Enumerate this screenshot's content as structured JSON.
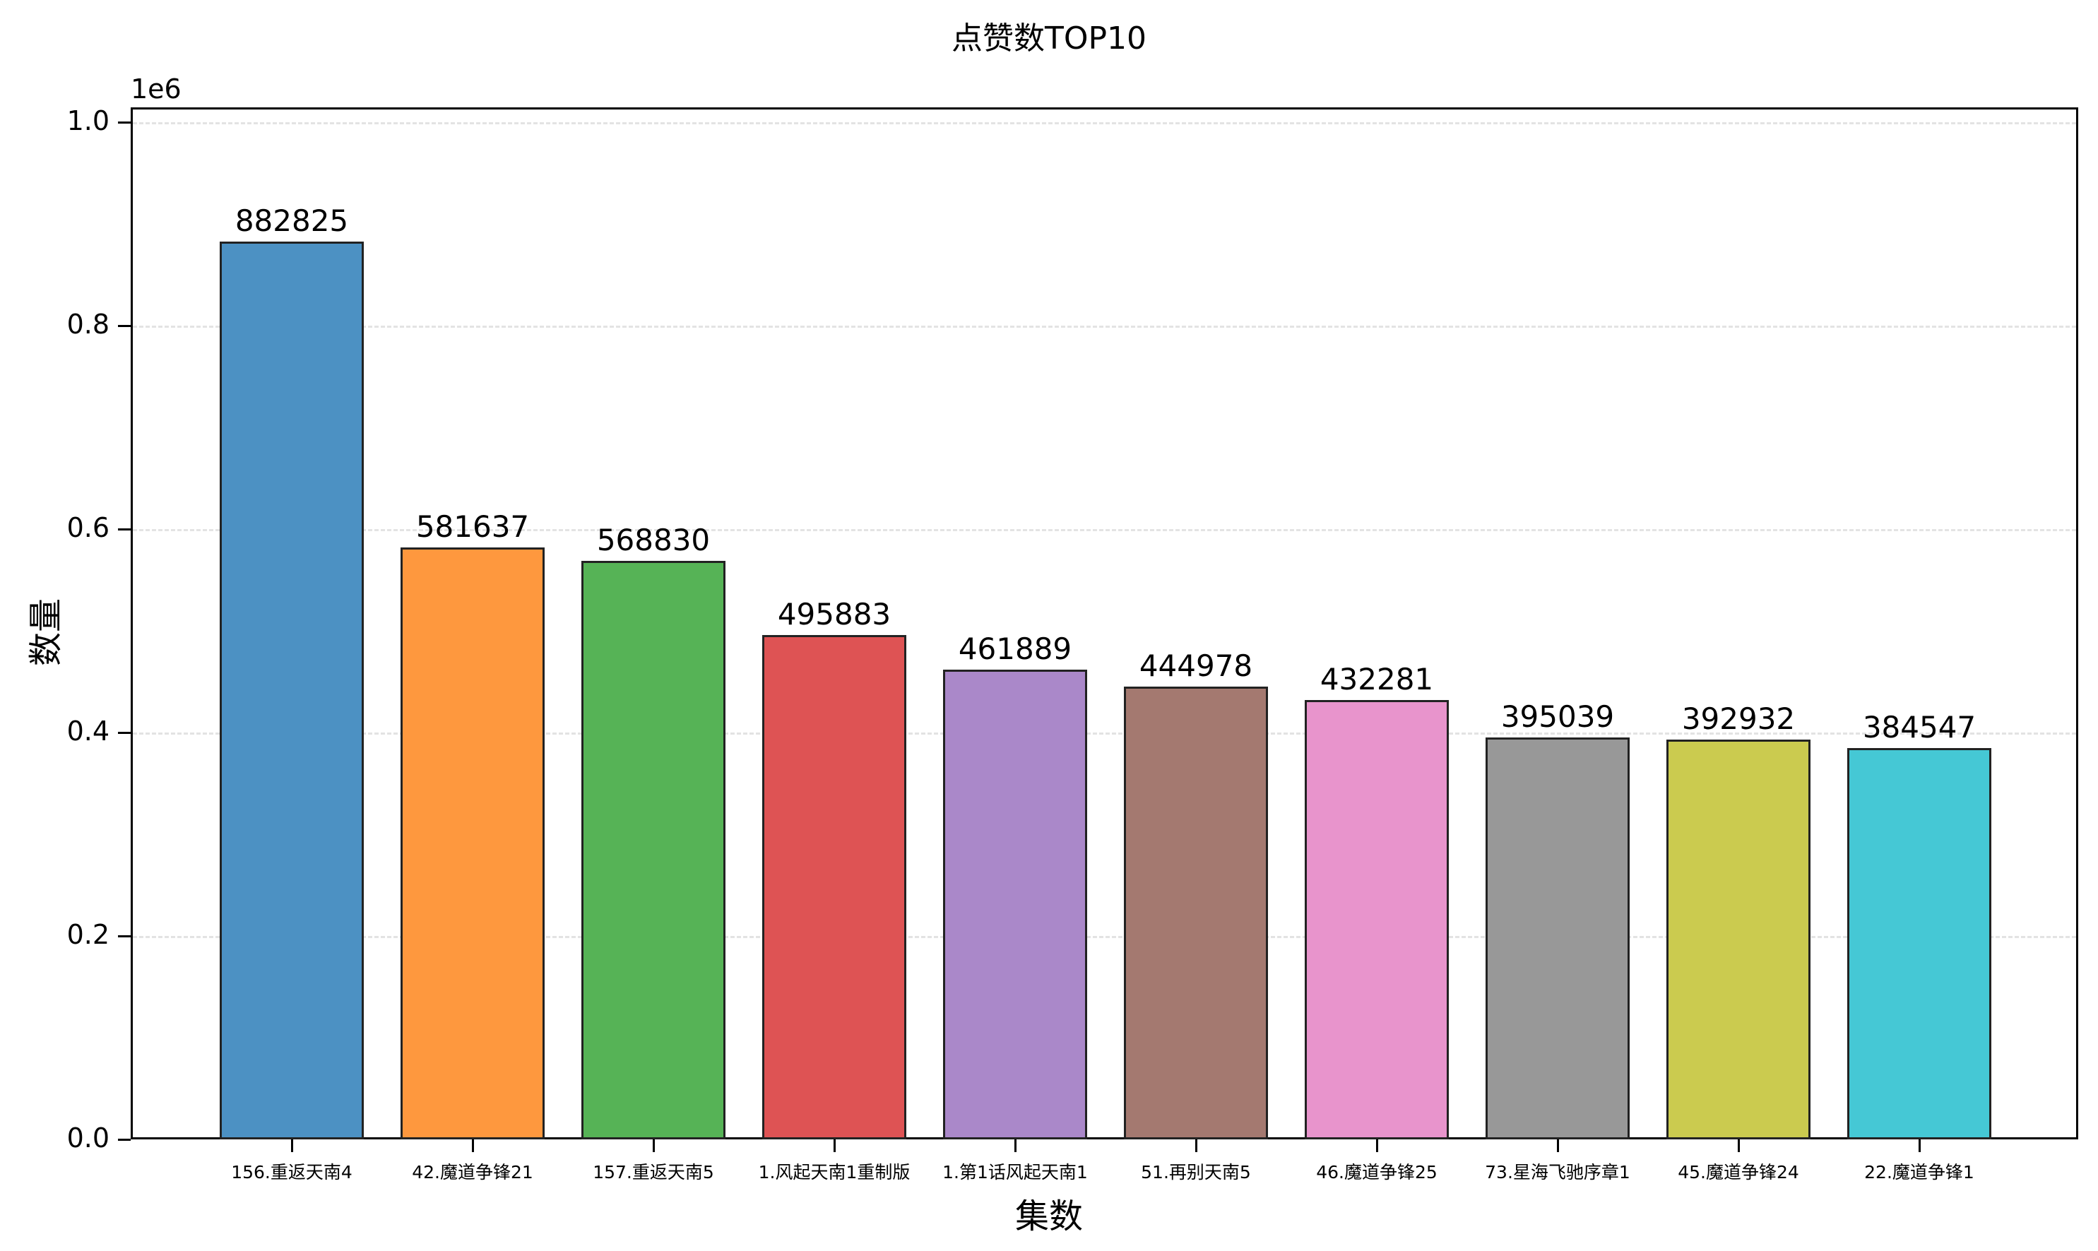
{
  "title": "点赞数TOP10",
  "axes": {
    "xlabel": "集数",
    "ylabel": "数量",
    "offset_text": "1e6",
    "yticks": [
      "0.0",
      "0.2",
      "0.4",
      "0.6",
      "0.8",
      "1.0"
    ]
  },
  "chart_data": {
    "type": "bar",
    "title": "点赞数TOP10",
    "xlabel": "集数",
    "ylabel": "数量",
    "y_scale_offset": "1e6",
    "ylim": [
      0,
      1010000
    ],
    "yticks": [
      0,
      200000,
      400000,
      600000,
      800000,
      1000000
    ],
    "grid": {
      "axis": "y",
      "style": "dashed",
      "color": "#e3e3e3"
    },
    "legend": null,
    "categories": [
      "156.重返天南4",
      "42.魔道争锋21",
      "157.重返天南5",
      "1.风起天南1重制版",
      "1.第1话风起天南1",
      "51.再别天南5",
      "46.魔道争锋25",
      "73.星海飞驰序章1",
      "45.魔道争锋24",
      "22.魔道争锋1"
    ],
    "values": [
      882825,
      581637,
      568830,
      495883,
      461889,
      444978,
      432281,
      395039,
      392932,
      384547
    ],
    "data_labels": [
      "882825",
      "581637",
      "568830",
      "495883",
      "461889",
      "444978",
      "432281",
      "395039",
      "392932",
      "384547"
    ],
    "colors": [
      "#4c91c3",
      "#fe983e",
      "#56b356",
      "#de5354",
      "#aa88c9",
      "#a47970",
      "#e894cc",
      "#989898",
      "#cbcb4f",
      "#45c8d5"
    ]
  }
}
